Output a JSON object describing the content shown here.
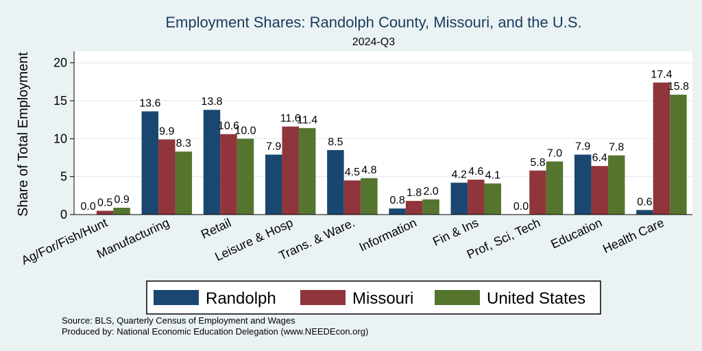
{
  "chart_data": {
    "type": "bar",
    "title": "Employment Shares: Randolph County, Missouri, and the U.S.",
    "subtitle": "2024-Q3",
    "xlabel": "",
    "ylabel": "Share of Total Employment",
    "ylim": [
      0,
      20
    ],
    "yticks": [
      0,
      5,
      10,
      15,
      20
    ],
    "grid": true,
    "legend_position": "bottom",
    "categories": [
      "Ag/For/Fish/Hunt",
      "Manufacturing",
      "Retail",
      "Leisure & Hosp",
      "Trans. & Ware.",
      "Information",
      "Fin & Ins",
      "Prof, Sci, Tech",
      "Education",
      "Health Care"
    ],
    "series": [
      {
        "name": "Randolph",
        "color": "#1a476f",
        "values": [
          0.0,
          13.6,
          13.8,
          7.9,
          8.5,
          0.8,
          4.2,
          0.0,
          7.9,
          0.6
        ]
      },
      {
        "name": "Missouri",
        "color": "#90353b",
        "values": [
          0.5,
          9.9,
          10.6,
          11.6,
          4.5,
          1.8,
          4.6,
          5.8,
          6.4,
          17.4
        ]
      },
      {
        "name": "United States",
        "color": "#55752f",
        "values": [
          0.9,
          8.3,
          10.0,
          11.4,
          4.8,
          2.0,
          4.1,
          7.0,
          7.8,
          15.8
        ]
      }
    ],
    "value_labels": [
      [
        "0.0",
        "13.6",
        "13.8",
        "7.9",
        "8.5",
        "0.8",
        "4.2",
        "0.0",
        "7.9",
        "0.6"
      ],
      [
        "0.5",
        "9.9",
        "10.6",
        "11.6",
        "4.5",
        "1.8",
        "4.6",
        "5.8",
        "6.4",
        "17.4"
      ],
      [
        "0.9",
        "8.3",
        "10.0",
        "11.4",
        "4.8",
        "2.0",
        "4.1",
        "7.0",
        "7.8",
        "15.8"
      ]
    ]
  },
  "notes": {
    "source": "Source: BLS, Quarterly Census of Employment and Wages",
    "produced_by": "Produced by: National Economic Education Delegation (www.NEEDEcon.org)"
  },
  "colors": {
    "background": "#eaf2f3",
    "plot_background": "#ffffff",
    "title": "#1a3a5f"
  }
}
